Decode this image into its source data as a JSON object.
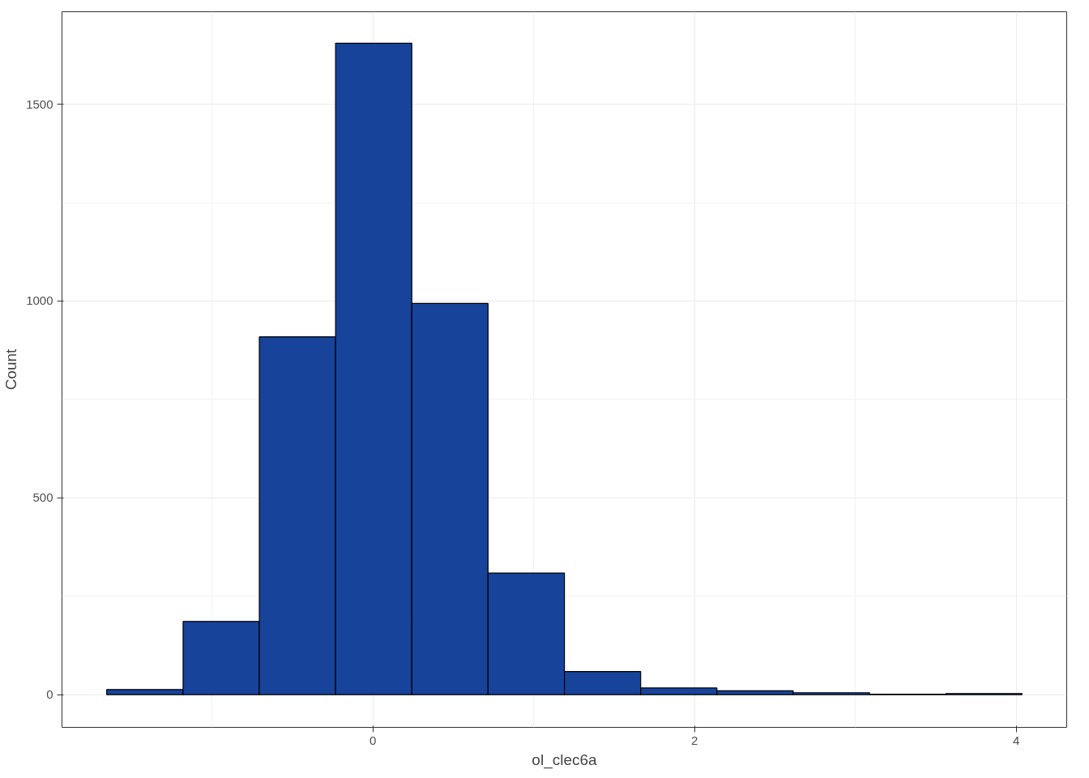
{
  "chart_data": {
    "type": "histogram",
    "xlabel": "ol_clec6a",
    "ylabel": "Count",
    "bins": [
      -1.655,
      -1.18,
      -0.706,
      -0.232,
      0.242,
      0.716,
      1.191,
      1.665,
      2.139,
      2.613,
      3.088,
      3.562,
      4.036
    ],
    "values": [
      13,
      186,
      909,
      1655,
      994,
      309,
      59,
      17,
      10,
      5,
      1,
      3
    ],
    "color": "#17439b",
    "xlim": [
      -1.933,
      4.314
    ],
    "xticks": [
      0,
      2,
      4
    ],
    "ylim": [
      -83,
      1735
    ],
    "yticks": [
      0,
      500,
      1000,
      1500
    ],
    "grid": true
  }
}
